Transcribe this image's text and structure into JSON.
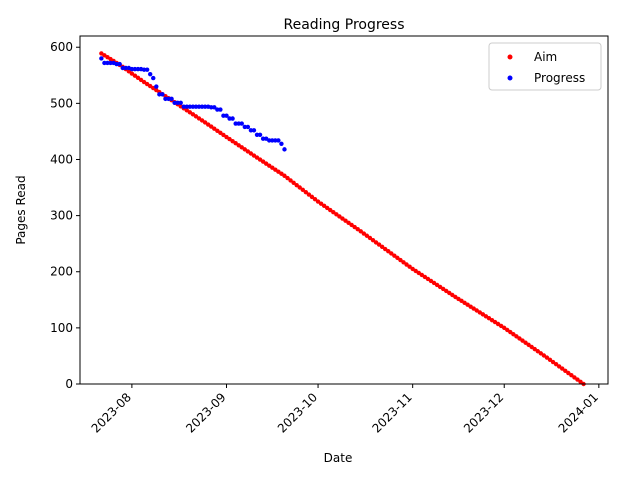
{
  "chart_data": {
    "type": "scatter",
    "title": "Reading Progress",
    "xlabel": "Date",
    "ylabel": "Pages Read",
    "x_axis_type": "date",
    "xlim": [
      "2023-07-15",
      "2024-01-04"
    ],
    "ylim": [
      0,
      620
    ],
    "x_ticks": [
      "2023-08",
      "2023-09",
      "2023-10",
      "2023-11",
      "2023-12",
      "2024-01"
    ],
    "y_ticks": [
      0,
      100,
      200,
      300,
      400,
      500,
      600
    ],
    "grid": false,
    "legend_position": "top-right",
    "series": [
      {
        "name": "Aim",
        "color": "#ff0000",
        "marker": "point",
        "points": [
          {
            "x": "2023-07-22",
            "y": 589
          },
          {
            "x": "2023-07-25",
            "y": 579
          },
          {
            "x": "2023-07-29",
            "y": 565
          },
          {
            "x": "2023-08-01",
            "y": 553
          },
          {
            "x": "2023-08-05",
            "y": 538
          },
          {
            "x": "2023-08-10",
            "y": 520
          },
          {
            "x": "2023-08-15",
            "y": 502
          },
          {
            "x": "2023-08-20",
            "y": 484
          },
          {
            "x": "2023-08-25",
            "y": 466
          },
          {
            "x": "2023-09-01",
            "y": 440
          },
          {
            "x": "2023-09-10",
            "y": 407
          },
          {
            "x": "2023-09-20",
            "y": 371
          },
          {
            "x": "2023-10-01",
            "y": 325
          },
          {
            "x": "2023-10-15",
            "y": 272
          },
          {
            "x": "2023-11-01",
            "y": 205
          },
          {
            "x": "2023-11-15",
            "y": 155
          },
          {
            "x": "2023-12-01",
            "y": 100
          },
          {
            "x": "2023-12-15",
            "y": 47
          },
          {
            "x": "2023-12-27",
            "y": 0
          }
        ]
      },
      {
        "name": "Progress",
        "color": "#0000ff",
        "marker": "point",
        "points": [
          {
            "x": "2023-07-22",
            "y": 580
          },
          {
            "x": "2023-07-23",
            "y": 572
          },
          {
            "x": "2023-07-27",
            "y": 570
          },
          {
            "x": "2023-07-29",
            "y": 563
          },
          {
            "x": "2023-08-01",
            "y": 561
          },
          {
            "x": "2023-08-05",
            "y": 560
          },
          {
            "x": "2023-08-07",
            "y": 552
          },
          {
            "x": "2023-08-08",
            "y": 545
          },
          {
            "x": "2023-08-09",
            "y": 530
          },
          {
            "x": "2023-08-10",
            "y": 516
          },
          {
            "x": "2023-08-12",
            "y": 508
          },
          {
            "x": "2023-08-15",
            "y": 501
          },
          {
            "x": "2023-08-18",
            "y": 494
          },
          {
            "x": "2023-08-27",
            "y": 493
          },
          {
            "x": "2023-08-29",
            "y": 489
          },
          {
            "x": "2023-08-31",
            "y": 478
          },
          {
            "x": "2023-09-02",
            "y": 473
          },
          {
            "x": "2023-09-04",
            "y": 464
          },
          {
            "x": "2023-09-07",
            "y": 458
          },
          {
            "x": "2023-09-09",
            "y": 452
          },
          {
            "x": "2023-09-11",
            "y": 444
          },
          {
            "x": "2023-09-13",
            "y": 437
          },
          {
            "x": "2023-09-15",
            "y": 434
          },
          {
            "x": "2023-09-18",
            "y": 434
          },
          {
            "x": "2023-09-19",
            "y": 428
          },
          {
            "x": "2023-09-20",
            "y": 418
          }
        ]
      }
    ]
  }
}
